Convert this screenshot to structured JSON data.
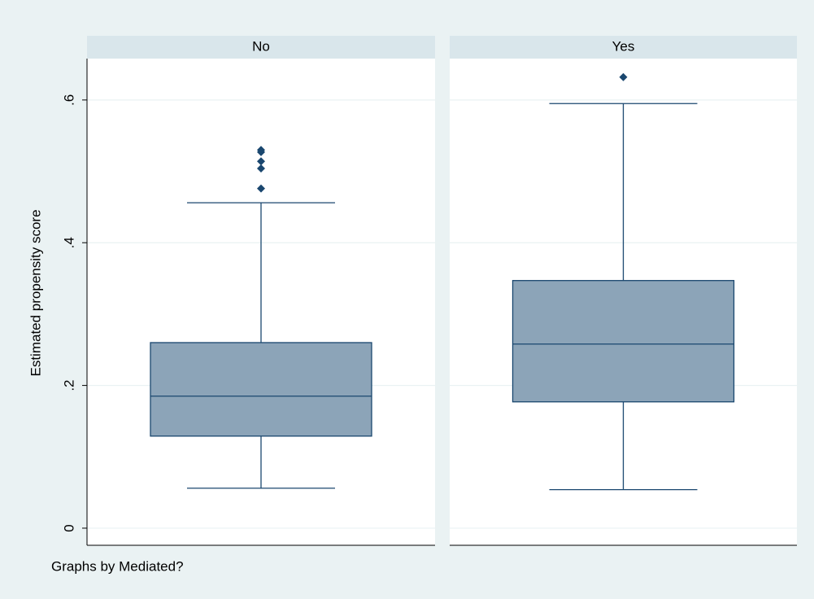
{
  "chart_data": {
    "type": "box",
    "ytitle": "Estimated propensity score",
    "note": "Graphs by Mediated?",
    "ylim": [
      -0.024,
      0.658
    ],
    "yticks": [
      0,
      {
        "value": 0.2,
        "label": ".2"
      },
      {
        "value": 0.4,
        "label": ".4"
      },
      {
        "value": 0.6,
        "label": ".6"
      }
    ],
    "grid": true,
    "color": "#8ca4b8",
    "panels": [
      {
        "name": "No",
        "min": 0.056,
        "q1": 0.129,
        "median": 0.185,
        "q3": 0.26,
        "max": 0.456,
        "outliers": [
          0.53,
          0.527,
          0.514,
          0.504,
          0.476
        ]
      },
      {
        "name": "Yes",
        "min": 0.054,
        "q1": 0.177,
        "median": 0.258,
        "q3": 0.347,
        "max": 0.595,
        "outliers": [
          0.632
        ]
      }
    ]
  }
}
